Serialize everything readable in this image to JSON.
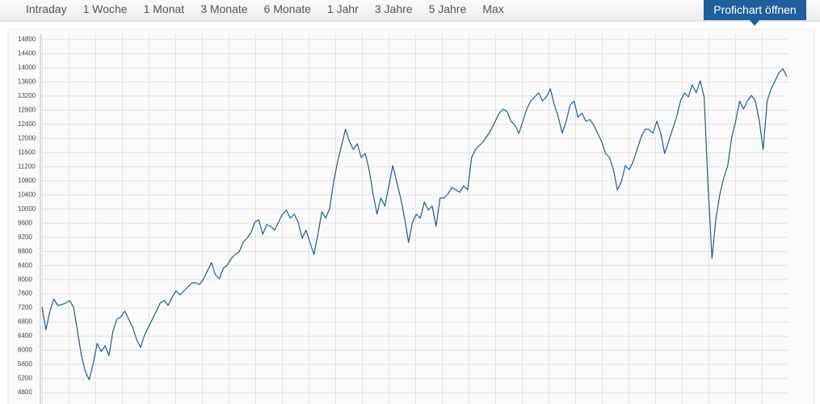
{
  "tabs": [
    "Intraday",
    "1 Woche",
    "1 Monat",
    "3 Monate",
    "6 Monate",
    "1 Jahr",
    "3 Jahre",
    "5 Jahre",
    "Max"
  ],
  "button": "Profichart öffnen",
  "chart_data": {
    "type": "line",
    "color": "#1b5c98",
    "grid": true,
    "ylim": [
      4600,
      14900
    ],
    "yticks": [
      4800,
      5200,
      5600,
      6000,
      6400,
      6800,
      7200,
      7600,
      8000,
      8400,
      8800,
      9200,
      9600,
      10000,
      10400,
      10800,
      11200,
      11600,
      12000,
      12400,
      12800,
      13200,
      13600,
      14000,
      14400,
      14800
    ],
    "values": [
      7226,
      6585,
      7111,
      7454,
      7271,
      7294,
      7340,
      7408,
      7226,
      6539,
      5853,
      5395,
      5166,
      5624,
      6196,
      5967,
      6127,
      5853,
      6539,
      6882,
      6951,
      7111,
      6882,
      6653,
      6310,
      6081,
      6425,
      6653,
      6882,
      7111,
      7340,
      7408,
      7271,
      7500,
      7683,
      7569,
      7683,
      7797,
      7912,
      7912,
      7866,
      8026,
      8255,
      8484,
      8141,
      8026,
      8324,
      8415,
      8598,
      8713,
      8781,
      9056,
      9171,
      9331,
      9628,
      9697,
      9285,
      9560,
      9514,
      9400,
      9628,
      9857,
      9971,
      9743,
      9857,
      9628,
      9171,
      9400,
      9056,
      8713,
      9285,
      9926,
      9743,
      10017,
      10772,
      11344,
      11802,
      12260,
      11916,
      11688,
      11848,
      11459,
      11573,
      11115,
      10429,
      9857,
      10314,
      10086,
      10658,
      11230,
      10772,
      10314,
      9743,
      9056,
      9628,
      9857,
      9743,
      10200,
      9971,
      10086,
      9514,
      10314,
      10314,
      10429,
      10612,
      10543,
      10475,
      10658,
      10543,
      11459,
      11688,
      11802,
      11916,
      12077,
      12260,
      12489,
      12717,
      12832,
      12763,
      12489,
      12374,
      12145,
      12489,
      12832,
      13061,
      13175,
      13290,
      13061,
      13175,
      13404,
      12946,
      12603,
      12145,
      12489,
      12946,
      13061,
      12603,
      12717,
      12489,
      12535,
      12374,
      12145,
      11916,
      11573,
      11459,
      11115,
      10543,
      10772,
      11230,
      11115,
      11344,
      11688,
      12031,
      12260,
      12260,
      12145,
      12489,
      12145,
      11573,
      11916,
      12260,
      12603,
      13061,
      13290,
      13175,
      13518,
      13290,
      13633,
      13175,
      10658,
      8598,
      9743,
      10429,
      10887,
      11230,
      12031,
      12489,
      13061,
      12832,
      13061,
      13221,
      13061,
      12489,
      11688,
      13061,
      13404,
      13633,
      13862,
      13977,
      13748
    ]
  }
}
